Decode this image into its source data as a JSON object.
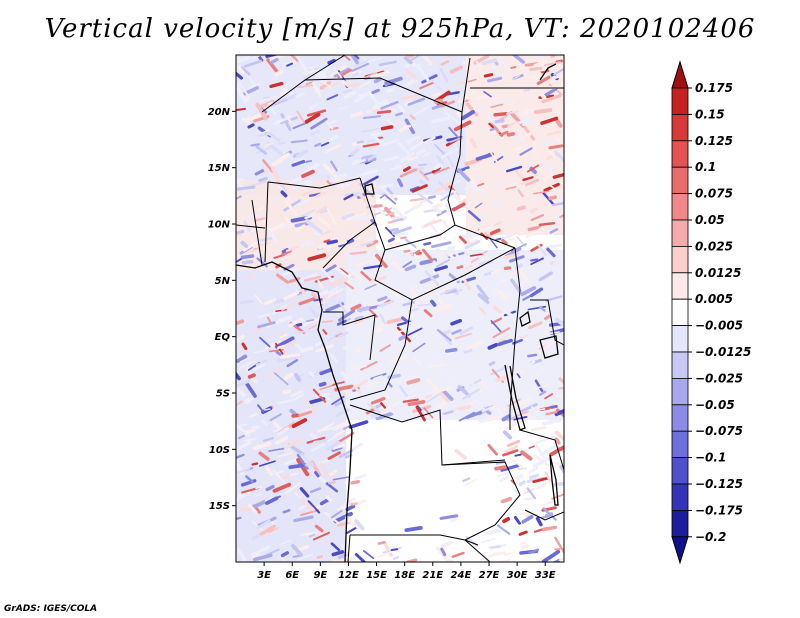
{
  "title": "Vertical velocity [m/s] at 925hPa, VT: 2020102406",
  "credit": "GrADS: IGES/COLA",
  "map": {
    "lon_range": [
      0,
      35
    ],
    "lat_range": [
      -20,
      25
    ],
    "lat_ticks": [
      {
        "value": 20,
        "label": "20N"
      },
      {
        "value": 15,
        "label": "15N"
      },
      {
        "value": 10,
        "label": "10N"
      },
      {
        "value": 5,
        "label": "5N"
      },
      {
        "value": 0,
        "label": "EQ"
      },
      {
        "value": -5,
        "label": "5S"
      },
      {
        "value": -10,
        "label": "10S"
      },
      {
        "value": -15,
        "label": "15S"
      }
    ],
    "lon_ticks": [
      {
        "value": 3,
        "label": "3E"
      },
      {
        "value": 6,
        "label": "6E"
      },
      {
        "value": 9,
        "label": "9E"
      },
      {
        "value": 12,
        "label": "12E"
      },
      {
        "value": 15,
        "label": "15E"
      },
      {
        "value": 18,
        "label": "18E"
      },
      {
        "value": 21,
        "label": "21E"
      },
      {
        "value": 24,
        "label": "24E"
      },
      {
        "value": 27,
        "label": "27E"
      },
      {
        "value": 30,
        "label": "30E"
      },
      {
        "value": 33,
        "label": "33E"
      }
    ]
  },
  "colorbar": {
    "units": "m/s",
    "items": [
      {
        "label": "0.175",
        "color": "#b01414"
      },
      {
        "label": "0.15",
        "color": "#c62222"
      },
      {
        "label": "0.125",
        "color": "#d83a3a"
      },
      {
        "label": "0.1",
        "color": "#e45252"
      },
      {
        "label": "0.075",
        "color": "#e86c6c"
      },
      {
        "label": "0.05",
        "color": "#f08888"
      },
      {
        "label": "0.025",
        "color": "#f6aaaa"
      },
      {
        "label": "0.0125",
        "color": "#fbcdcd"
      },
      {
        "label": "0.005",
        "color": "#fde9e9"
      },
      {
        "label": "−0.005",
        "color": "#ffffff"
      },
      {
        "label": "−0.0125",
        "color": "#e6e6fb"
      },
      {
        "label": "−0.025",
        "color": "#c8c8f4"
      },
      {
        "label": "−0.05",
        "color": "#a8a8ee"
      },
      {
        "label": "−0.075",
        "color": "#8c8ce6"
      },
      {
        "label": "−0.1",
        "color": "#6e6edc"
      },
      {
        "label": "−0.125",
        "color": "#5050cc"
      },
      {
        "label": "−0.175",
        "color": "#3434b8"
      },
      {
        "label": "−0.2",
        "color": "#1c1c9c"
      }
    ],
    "top_arrow_color": "#a01010",
    "bottom_arrow_color": "#10108a"
  }
}
